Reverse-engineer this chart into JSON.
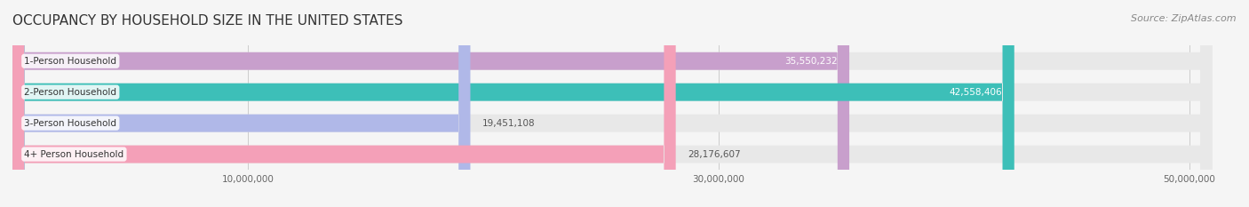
{
  "title": "OCCUPANCY BY HOUSEHOLD SIZE IN THE UNITED STATES",
  "source": "Source: ZipAtlas.com",
  "categories": [
    "1-Person Household",
    "2-Person Household",
    "3-Person Household",
    "4+ Person Household"
  ],
  "values": [
    35550232,
    42558406,
    19451108,
    28176607
  ],
  "bar_colors": [
    "#c89fcc",
    "#3dbfb8",
    "#b0b8e8",
    "#f4a0b8"
  ],
  "label_colors": [
    "#ffffff",
    "#ffffff",
    "#666666",
    "#666666"
  ],
  "xlim": [
    0,
    52000000
  ],
  "xticks": [
    10000000,
    30000000,
    50000000
  ],
  "xtick_labels": [
    "10,000,000",
    "30,000,000",
    "50,000,000"
  ],
  "title_fontsize": 11,
  "source_fontsize": 8,
  "bar_height": 0.55,
  "bg_color": "#f5f5f5",
  "bar_bg_color": "#e8e8e8",
  "label_box_color": "#ffffff"
}
